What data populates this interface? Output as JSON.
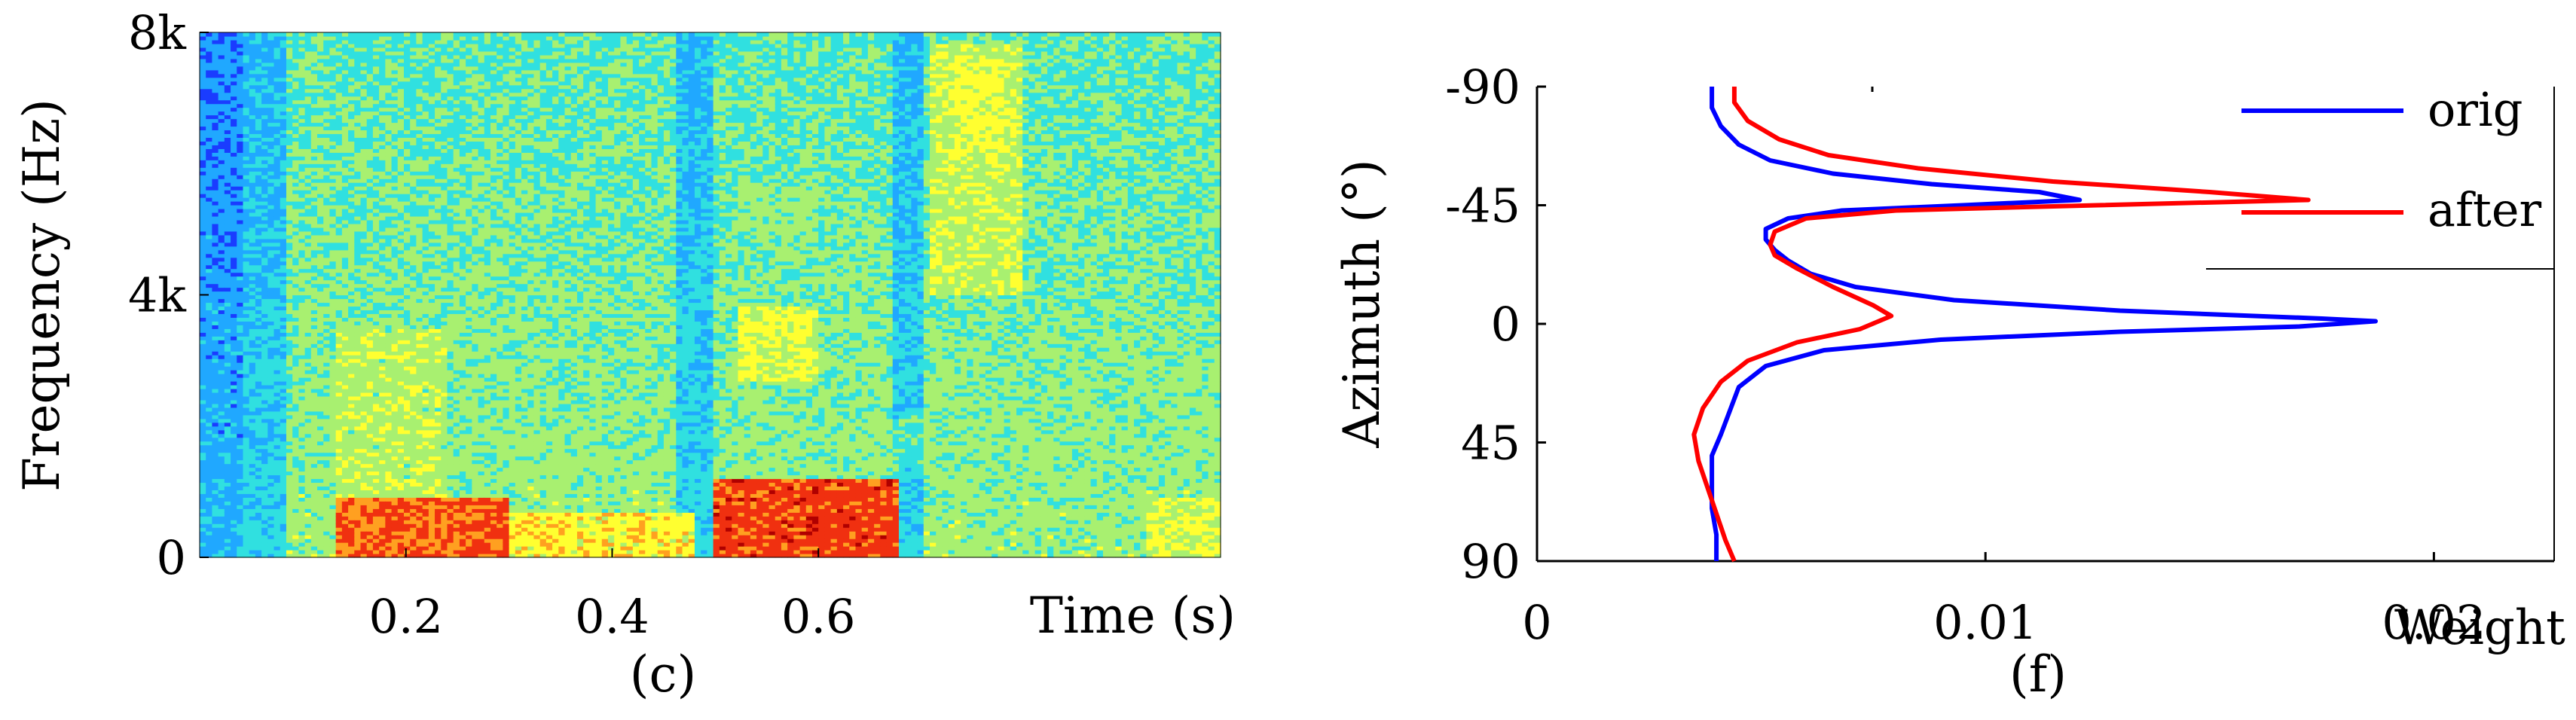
{
  "chart_data": [
    {
      "type": "heatmap",
      "panel_label": "(c)",
      "ylabel": "Frequency (Hz)",
      "xlabel": "Time (s)",
      "xlim": [
        0.0,
        0.99
      ],
      "ylim": [
        0,
        8000
      ],
      "xticks": [
        {
          "value": 0.2,
          "label": "0.2"
        },
        {
          "value": 0.4,
          "label": "0.4"
        },
        {
          "value": 0.6,
          "label": "0.6"
        }
      ],
      "yticks": [
        {
          "value": 0,
          "label": "0"
        },
        {
          "value": 4000,
          "label": "4k"
        },
        {
          "value": 8000,
          "label": "8k"
        }
      ],
      "colormap": [
        "#1a3cff",
        "#20a8ff",
        "#30e0e0",
        "#a8f070",
        "#ffff30",
        "#ffa020",
        "#f03010",
        "#b00000"
      ]
    },
    {
      "type": "line",
      "panel_label": "(f)",
      "ylabel": "Azimuth (°)",
      "xlabel": "Weight",
      "xlim": [
        0,
        0.025
      ],
      "ylim": [
        -90,
        90
      ],
      "xticks": [
        {
          "value": 0,
          "label": "0"
        },
        {
          "value": 0.01,
          "label": "0.01"
        },
        {
          "value": 0.02,
          "label": "0.02"
        }
      ],
      "yticks": [
        {
          "value": -90,
          "label": "-90"
        },
        {
          "value": -45,
          "label": "-45"
        },
        {
          "value": 0,
          "label": "0"
        },
        {
          "value": 45,
          "label": "45"
        },
        {
          "value": 90,
          "label": "90"
        }
      ],
      "legend_position": "top-right",
      "series": [
        {
          "name": "orig",
          "color": "#0000ff",
          "points": [
            [
              0.0039,
              -90
            ],
            [
              0.0039,
              -82
            ],
            [
              0.0041,
              -75
            ],
            [
              0.0045,
              -68
            ],
            [
              0.0052,
              -62
            ],
            [
              0.0066,
              -57
            ],
            [
              0.0088,
              -53
            ],
            [
              0.0112,
              -50
            ],
            [
              0.0121,
              -47
            ],
            [
              0.0095,
              -45
            ],
            [
              0.0068,
              -43
            ],
            [
              0.0056,
              -40
            ],
            [
              0.0051,
              -36
            ],
            [
              0.0051,
              -32
            ],
            [
              0.0053,
              -28
            ],
            [
              0.0056,
              -24
            ],
            [
              0.0061,
              -19
            ],
            [
              0.0071,
              -14
            ],
            [
              0.0093,
              -9
            ],
            [
              0.013,
              -5
            ],
            [
              0.0175,
              -2
            ],
            [
              0.0187,
              -1
            ],
            [
              0.017,
              1
            ],
            [
              0.013,
              3
            ],
            [
              0.009,
              6
            ],
            [
              0.0064,
              10
            ],
            [
              0.0051,
              16
            ],
            [
              0.0045,
              24
            ],
            [
              0.0043,
              33
            ],
            [
              0.0041,
              42
            ],
            [
              0.0039,
              50
            ],
            [
              0.0039,
              60
            ],
            [
              0.0039,
              70
            ],
            [
              0.004,
              80
            ],
            [
              0.004,
              90
            ]
          ]
        },
        {
          "name": "after",
          "color": "#ff0000",
          "points": [
            [
              0.0044,
              -90
            ],
            [
              0.0044,
              -84
            ],
            [
              0.0047,
              -77
            ],
            [
              0.0054,
              -70
            ],
            [
              0.0065,
              -64
            ],
            [
              0.0085,
              -59
            ],
            [
              0.0115,
              -54
            ],
            [
              0.015,
              -50
            ],
            [
              0.0172,
              -47
            ],
            [
              0.0125,
              -45
            ],
            [
              0.008,
              -43
            ],
            [
              0.006,
              -40
            ],
            [
              0.0053,
              -35
            ],
            [
              0.0052,
              -30
            ],
            [
              0.0053,
              -26
            ],
            [
              0.0058,
              -21
            ],
            [
              0.0066,
              -14
            ],
            [
              0.0075,
              -7
            ],
            [
              0.0079,
              -3
            ],
            [
              0.0072,
              2
            ],
            [
              0.0058,
              7
            ],
            [
              0.0047,
              14
            ],
            [
              0.0041,
              22
            ],
            [
              0.0037,
              32
            ],
            [
              0.0035,
              42
            ],
            [
              0.0036,
              52
            ],
            [
              0.0038,
              62
            ],
            [
              0.004,
              72
            ],
            [
              0.0042,
              82
            ],
            [
              0.0044,
              90
            ]
          ]
        }
      ]
    }
  ]
}
